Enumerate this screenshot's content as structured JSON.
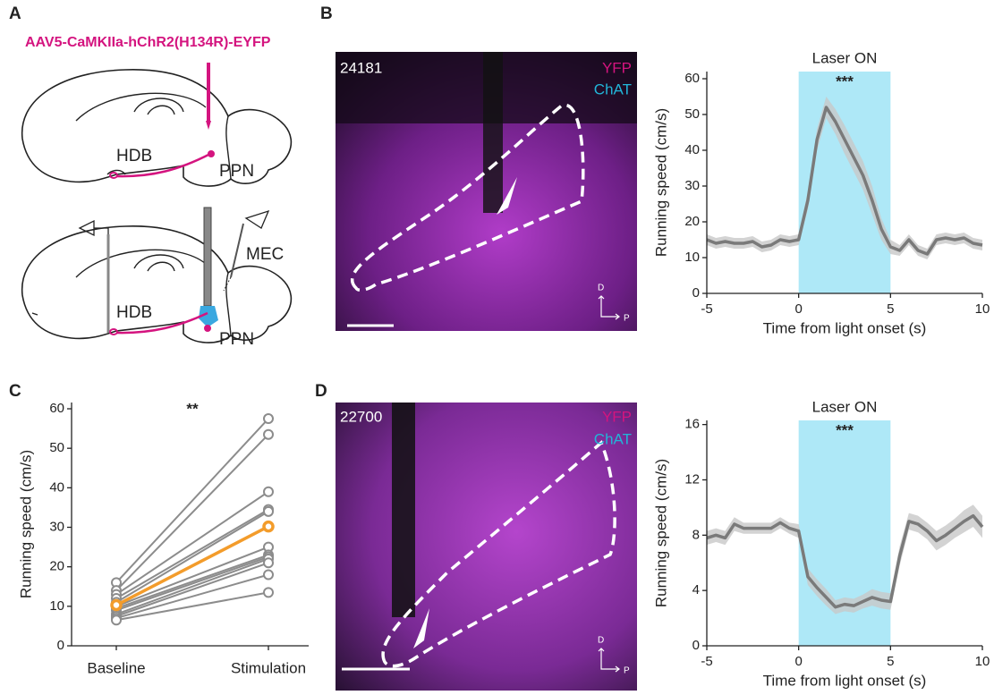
{
  "panels": {
    "A": "A",
    "B": "B",
    "C": "C",
    "D": "D"
  },
  "schematic": {
    "virus": "AAV5-CaMKIIa-hChR2(H134R)-EYFP",
    "hdb_top": "HDB",
    "ppn_top": "PPN",
    "mec": "MEC",
    "hdb_bottom": "HDB",
    "ppn_bottom": "PPN"
  },
  "images": [
    {
      "id": "24181",
      "channels": [
        "YFP",
        "ChAT"
      ],
      "dorsal": "D",
      "posterior": "P"
    },
    {
      "id": "22700",
      "channels": [
        "YFP",
        "ChAT"
      ],
      "dorsal": "D",
      "posterior": "P"
    }
  ],
  "chart_data": [
    {
      "type": "line",
      "title": "Laser ON",
      "annotation": "***",
      "x_label": "Time from light onset (s)",
      "y_label": "Running speed (cm/s)",
      "highlight": [
        0,
        5
      ],
      "highlight_color": "#aee8f7",
      "color": "#7a7a7a",
      "band_color": "#c8c8c8",
      "x": [
        -5,
        -4.5,
        -4,
        -3.5,
        -3,
        -2.5,
        -2,
        -1.5,
        -1,
        -0.5,
        0,
        0.5,
        1,
        1.5,
        2,
        2.5,
        3,
        3.5,
        4,
        4.5,
        5,
        5.5,
        6,
        6.5,
        7,
        7.5,
        8,
        8.5,
        9,
        9.5,
        10
      ],
      "values": [
        15,
        14,
        14.5,
        14,
        14,
        14.5,
        13,
        13.5,
        15,
        14.5,
        15,
        26,
        43,
        52,
        48,
        43,
        38,
        33,
        26,
        18,
        13,
        12,
        15,
        12,
        11,
        15,
        15.5,
        15,
        15.5,
        14,
        13.5
      ],
      "error": [
        1.5,
        1.5,
        1.5,
        1.5,
        1.5,
        1.5,
        1.5,
        1.5,
        1.5,
        1.5,
        1.5,
        2.5,
        3,
        3,
        3.5,
        4,
        4,
        4,
        4,
        3,
        2,
        1.5,
        1.5,
        1.5,
        1.5,
        1.5,
        1.5,
        1.5,
        1.5,
        1.5,
        1.5
      ],
      "xlim": [
        -5,
        10
      ],
      "xticks": [
        -5,
        0,
        5,
        10
      ],
      "ylim": [
        0,
        62
      ],
      "yticks": [
        0,
        10,
        20,
        30,
        40,
        50,
        60
      ]
    },
    {
      "type": "paired",
      "annotation": "**",
      "y_label": "Running speed (cm/s)",
      "categories": [
        "Baseline",
        "Stimulation"
      ],
      "series": [
        {
          "color": "#8c8c8c",
          "values": [
            16,
            57.5
          ]
        },
        {
          "color": "#8c8c8c",
          "values": [
            14,
            53.5
          ]
        },
        {
          "color": "#8c8c8c",
          "values": [
            13,
            39
          ]
        },
        {
          "color": "#8c8c8c",
          "values": [
            12,
            34.5
          ]
        },
        {
          "color": "#8c8c8c",
          "values": [
            11,
            34
          ]
        },
        {
          "color": "#8c8c8c",
          "values": [
            10,
            25
          ]
        },
        {
          "color": "#8c8c8c",
          "values": [
            9.5,
            23
          ]
        },
        {
          "color": "#8c8c8c",
          "values": [
            9,
            22.5
          ]
        },
        {
          "color": "#8c8c8c",
          "values": [
            8,
            22
          ]
        },
        {
          "color": "#8c8c8c",
          "values": [
            7.5,
            21
          ]
        },
        {
          "color": "#8c8c8c",
          "values": [
            7,
            18
          ]
        },
        {
          "color": "#8c8c8c",
          "values": [
            6.5,
            13.5
          ]
        },
        {
          "color": "#f39c2b",
          "values": [
            10.3,
            30.2
          ]
        }
      ],
      "ylim": [
        0,
        60
      ],
      "yticks": [
        0,
        10,
        20,
        30,
        40,
        50,
        60
      ]
    },
    {
      "type": "line",
      "title": "Laser ON",
      "annotation": "***",
      "x_label": "Time from light onset (s)",
      "y_label": "Running speed (cm/s)",
      "highlight": [
        0,
        5
      ],
      "highlight_color": "#aee8f7",
      "color": "#7a7a7a",
      "band_color": "#c8c8c8",
      "x": [
        -5,
        -4.5,
        -4,
        -3.5,
        -3,
        -2.5,
        -2,
        -1.5,
        -1,
        -0.5,
        0,
        0.5,
        1,
        1.5,
        2,
        2.5,
        3,
        3.5,
        4,
        4.5,
        5,
        5.5,
        6,
        6.5,
        7,
        7.5,
        8,
        8.5,
        9,
        9.5,
        10
      ],
      "values": [
        7.8,
        8,
        7.8,
        8.8,
        8.5,
        8.5,
        8.5,
        8.5,
        8.9,
        8.5,
        8.3,
        5,
        4.2,
        3.5,
        2.8,
        3,
        2.9,
        3.2,
        3.5,
        3.3,
        3.2,
        6.5,
        9,
        8.8,
        8.3,
        7.6,
        8,
        8.5,
        9,
        9.4,
        8.6
      ],
      "error": [
        0.5,
        0.5,
        0.5,
        0.5,
        0.4,
        0.4,
        0.4,
        0.4,
        0.4,
        0.4,
        0.5,
        0.6,
        0.6,
        0.6,
        0.5,
        0.5,
        0.5,
        0.5,
        0.6,
        0.6,
        0.6,
        0.7,
        0.6,
        0.6,
        0.6,
        0.7,
        0.7,
        0.7,
        0.8,
        0.8,
        0.8
      ],
      "xlim": [
        -5,
        10
      ],
      "xticks": [
        -5,
        0,
        5,
        10
      ],
      "ylim": [
        0,
        16.3
      ],
      "yticks": [
        0,
        4,
        8,
        12,
        16
      ]
    }
  ]
}
